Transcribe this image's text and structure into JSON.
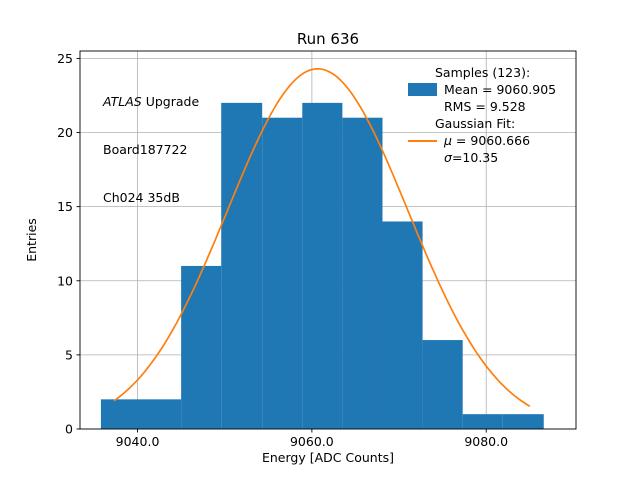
{
  "annotation": {
    "line1_italic": "ATLAS",
    "line1_rest": " Upgrade",
    "line2": "Board187722",
    "line3": "Ch024 35dB"
  },
  "legend": {
    "samples_header": "Samples (123):",
    "mean_label": "Mean = 9060.905",
    "rms_label": "RMS = 9.528",
    "fit_header": "Gaussian Fit:",
    "mu_symbol": "μ",
    "mu_rest": " = 9060.666",
    "sigma_symbol": "σ",
    "sigma_rest": "=10.35"
  },
  "chart_data": {
    "type": "bar",
    "subtype": "histogram-with-gaussian-fit",
    "title": "Run 636",
    "xlabel": "Energy [ADC Counts]",
    "ylabel": "Entries",
    "samples": 123,
    "mean": 9060.905,
    "rms": 9.528,
    "bin_edges": [
      9035.8,
      9040.4,
      9045.0,
      9049.6,
      9054.3,
      9058.9,
      9063.5,
      9068.1,
      9072.7,
      9077.3,
      9081.9,
      9086.6
    ],
    "counts": [
      2,
      2,
      11,
      22,
      21,
      22,
      21,
      14,
      6,
      1,
      1
    ],
    "bar_color": "#1f77b4",
    "fit": {
      "type": "gaussian",
      "mu": 9060.666,
      "sigma": 10.35,
      "amplitude": 24.3,
      "color": "#ff7f0e",
      "x_range": [
        9037.3,
        9085.0
      ]
    },
    "xlim": [
      9033.4,
      9090.3
    ],
    "ylim": [
      0,
      25.5
    ],
    "xticks": [
      9040.0,
      9060.0,
      9080.0
    ],
    "xtick_labels": [
      "9040.0",
      "9060.0",
      "9080.0"
    ],
    "yticks": [
      0,
      5,
      10,
      15,
      20,
      25
    ],
    "ytick_labels": [
      "0",
      "5",
      "10",
      "15",
      "20",
      "25"
    ],
    "grid": true,
    "grid_color": "#b0b0b0",
    "legend_position": "upper right"
  }
}
